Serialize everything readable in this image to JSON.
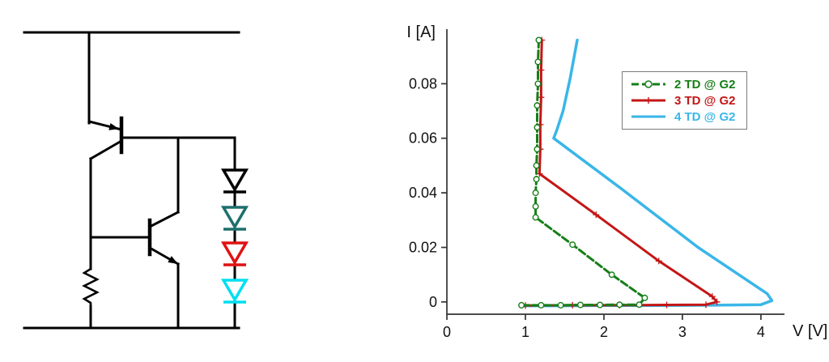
{
  "figure": {
    "background": "#ffffff"
  },
  "circuit": {
    "wire_color": "#000000",
    "diodes": [
      {
        "id": "diode-1",
        "color": "#000000"
      },
      {
        "id": "diode-2",
        "color": "#1e6f6d"
      },
      {
        "id": "diode-3",
        "color": "#e01212"
      },
      {
        "id": "diode-4",
        "color": "#00dff2"
      }
    ]
  },
  "chart_data": {
    "type": "line",
    "title": "",
    "xlabel": "V [V]",
    "ylabel": "I [A]",
    "xlim": [
      0,
      4.3
    ],
    "ylim": [
      -0.0045,
      0.1
    ],
    "grid": false,
    "legend_position": "upper right",
    "xticks": [
      {
        "value": 0,
        "label": "0"
      },
      {
        "value": 1,
        "label": "1"
      },
      {
        "value": 2,
        "label": "2"
      },
      {
        "value": 3,
        "label": "3"
      },
      {
        "value": 4,
        "label": "4"
      }
    ],
    "yticks": [
      {
        "value": 0,
        "label": "0"
      },
      {
        "value": 0.02,
        "label": "0.02"
      },
      {
        "value": 0.04,
        "label": "0.04"
      },
      {
        "value": 0.06,
        "label": "0.06"
      },
      {
        "value": 0.08,
        "label": "0.08"
      }
    ],
    "series": [
      {
        "name": "2 TD @ G2",
        "color": "#157f17",
        "marker": "circle",
        "dash": "9 4",
        "width": 3,
        "points": [
          [
            1.17,
            0.096
          ],
          [
            1.16,
            0.088
          ],
          [
            1.16,
            0.08
          ],
          [
            1.15,
            0.072
          ],
          [
            1.15,
            0.064
          ],
          [
            1.15,
            0.056
          ],
          [
            1.14,
            0.05
          ],
          [
            1.14,
            0.045
          ],
          [
            1.13,
            0.04
          ],
          [
            1.13,
            0.035
          ],
          [
            1.13,
            0.031
          ],
          [
            1.6,
            0.021
          ],
          [
            2.1,
            0.01
          ],
          [
            2.52,
            0.0015
          ],
          [
            2.45,
            -0.001
          ],
          [
            2.2,
            -0.001
          ],
          [
            1.95,
            -0.0011
          ],
          [
            1.7,
            -0.0011
          ],
          [
            1.45,
            -0.0012
          ],
          [
            1.2,
            -0.0012
          ],
          [
            0.95,
            -0.0012
          ]
        ]
      },
      {
        "name": "3 TD @ G2",
        "color": "#c41616",
        "marker": "plus",
        "dash": "",
        "width": 3,
        "points": [
          [
            1.21,
            0.096
          ],
          [
            1.2,
            0.085
          ],
          [
            1.2,
            0.075
          ],
          [
            1.19,
            0.065
          ],
          [
            1.19,
            0.056
          ],
          [
            1.18,
            0.047
          ],
          [
            1.9,
            0.032
          ],
          [
            2.7,
            0.015
          ],
          [
            3.38,
            0.002
          ],
          [
            3.44,
            0.0
          ],
          [
            3.3,
            -0.001
          ],
          [
            2.8,
            -0.0011
          ],
          [
            2.2,
            -0.0012
          ],
          [
            1.6,
            -0.0012
          ],
          [
            1.0,
            -0.0013
          ]
        ]
      },
      {
        "name": "4 TD @ G2",
        "color": "#3ab6e8",
        "marker": "none",
        "dash": "",
        "width": 3.5,
        "points": [
          [
            1.66,
            0.096
          ],
          [
            1.57,
            0.082
          ],
          [
            1.48,
            0.07
          ],
          [
            1.4,
            0.063
          ],
          [
            1.36,
            0.06
          ],
          [
            2.2,
            0.042
          ],
          [
            3.2,
            0.02
          ],
          [
            4.08,
            0.003
          ],
          [
            4.14,
            0.0005
          ],
          [
            4.0,
            -0.001
          ],
          [
            3.4,
            -0.0012
          ],
          [
            2.7,
            -0.0013
          ],
          [
            2.0,
            -0.0013
          ],
          [
            1.4,
            -0.0014
          ],
          [
            0.95,
            -0.0014
          ]
        ]
      }
    ]
  }
}
